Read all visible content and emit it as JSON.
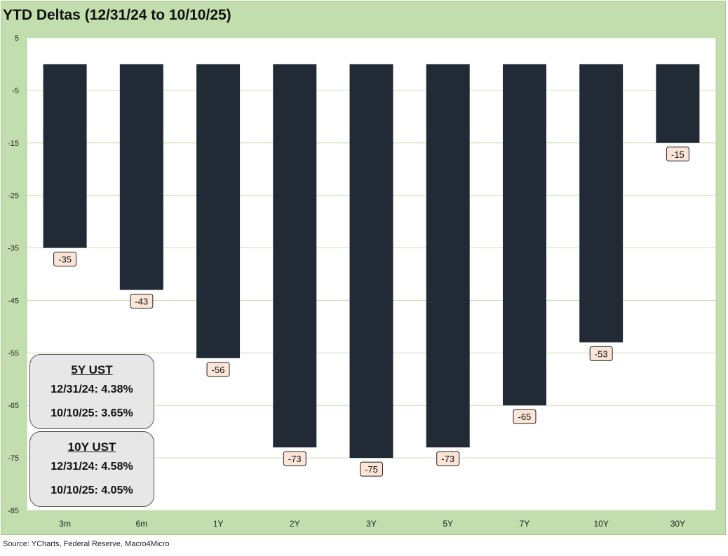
{
  "title": "YTD Deltas (12/31/24 to 10/10/25)",
  "source": "Source: YCharts, Federal Reserve, Macro4Micro",
  "colors": {
    "frame": "#c3deae",
    "plot_bg": "#ffffff",
    "bar": "#222a35",
    "label_bg": "#fce4d6",
    "grid": "#c6e0b4"
  },
  "chart_data": {
    "type": "bar",
    "title": "YTD Deltas (12/31/24 to 10/10/25)",
    "categories": [
      "3m",
      "6m",
      "1Y",
      "2Y",
      "3Y",
      "5Y",
      "7Y",
      "10Y",
      "30Y"
    ],
    "values": [
      -35,
      -43,
      -56,
      -73,
      -75,
      -73,
      -65,
      -53,
      -15
    ],
    "data_labels": [
      "-35",
      "-43",
      "-56",
      "-73",
      "-75",
      "-73",
      "-65",
      "-53",
      "-15"
    ],
    "ylim": [
      -85,
      5
    ],
    "yticks": [
      5,
      -5,
      -15,
      -25,
      -35,
      -45,
      -55,
      -65,
      -75,
      -85
    ],
    "ytick_labels": [
      "5",
      "-5",
      "-15",
      "-25",
      "-35",
      "-45",
      "-55",
      "-65",
      "-75",
      "-85"
    ],
    "xlabel": "",
    "ylabel": "",
    "grid": true,
    "legend": "none"
  },
  "boxes": [
    {
      "heading": "5Y UST",
      "rows": [
        "12/31/24:  4.38%",
        "10/10/25:  3.65%"
      ]
    },
    {
      "heading": "10Y UST",
      "rows": [
        "12/31/24:  4.58%",
        "10/10/25:  4.05%"
      ]
    }
  ]
}
